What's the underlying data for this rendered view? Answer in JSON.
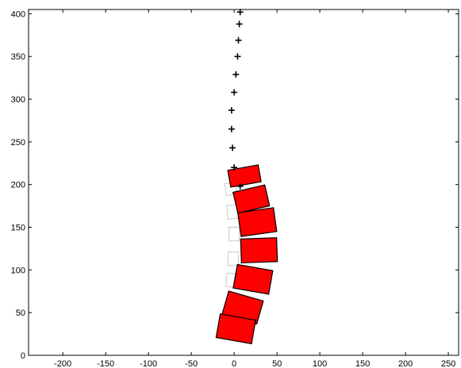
{
  "chart_data": {
    "type": "scatter",
    "title": "",
    "xlabel": "",
    "ylabel": "",
    "xlim": [
      -240,
      262
    ],
    "ylim": [
      0,
      405
    ],
    "grid": false,
    "xticks": [
      -200,
      -150,
      -100,
      -50,
      0,
      50,
      100,
      150,
      200,
      250
    ],
    "yticks": [
      0,
      50,
      100,
      150,
      200,
      250,
      300,
      350,
      400
    ],
    "marker_color": "#000000",
    "vertebra_color": "#ff0000",
    "ghost_color": "#c8c8c8",
    "markers": [
      {
        "x": 7,
        "y": 402
      },
      {
        "x": 6,
        "y": 388
      },
      {
        "x": 5,
        "y": 369
      },
      {
        "x": 4,
        "y": 350
      },
      {
        "x": 2,
        "y": 329
      },
      {
        "x": 0,
        "y": 308
      },
      {
        "x": -3,
        "y": 287
      },
      {
        "x": -3,
        "y": 265
      },
      {
        "x": -2,
        "y": 243
      },
      {
        "x": 0,
        "y": 220
      },
      {
        "x": 7,
        "y": 198
      }
    ],
    "vertebrae": [
      {
        "cx": 12,
        "cy": 210,
        "w": 36,
        "h": 20,
        "angle": 10
      },
      {
        "cx": 20,
        "cy": 183,
        "w": 38,
        "h": 25,
        "angle": 13
      },
      {
        "cx": 27,
        "cy": 156,
        "w": 42,
        "h": 28,
        "angle": 8
      },
      {
        "cx": 29,
        "cy": 123,
        "w": 42,
        "h": 28,
        "angle": 2
      },
      {
        "cx": 22,
        "cy": 89,
        "w": 42,
        "h": 28,
        "angle": -10
      },
      {
        "cx": 10,
        "cy": 56,
        "w": 42,
        "h": 28,
        "angle": -16
      },
      {
        "cx": 2,
        "cy": 31,
        "w": 42,
        "h": 28,
        "angle": -10
      }
    ],
    "ghost_vertebrae": [
      {
        "cx": -4,
        "cy": 195,
        "w": 12,
        "h": 14,
        "angle": 10
      },
      {
        "cx": -2,
        "cy": 168,
        "w": 12,
        "h": 16,
        "angle": 5
      },
      {
        "cx": 0,
        "cy": 142,
        "w": 12,
        "h": 16,
        "angle": 0
      },
      {
        "cx": -1,
        "cy": 113,
        "w": 12,
        "h": 16,
        "angle": -3
      },
      {
        "cx": -3,
        "cy": 88,
        "w": 12,
        "h": 16,
        "angle": -5
      }
    ]
  }
}
